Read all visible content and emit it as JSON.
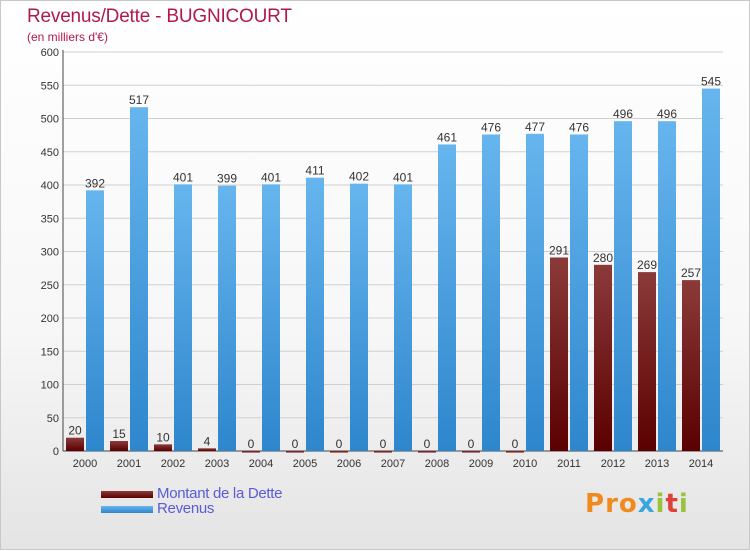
{
  "title": "Revenus/Dette - BUGNICOURT",
  "subtitle": "(en milliers d'€)",
  "logo": {
    "letters": [
      "P",
      "r",
      "o",
      "x",
      "i",
      "t",
      "i"
    ],
    "colors": [
      "#f08a1c",
      "#f08a1c",
      "#f08a1c",
      "#3aa6e0",
      "#9ac33a",
      "#e0403a",
      "#9ac33a"
    ]
  },
  "colors": {
    "debt_top": "#8b3a3a",
    "debt_bottom": "#5a0000",
    "rev_top": "#66b5ee",
    "rev_bottom": "#2e86cc",
    "text": "#5b5bd6",
    "title": "#b01a4a"
  },
  "chart_data": {
    "type": "bar",
    "categories": [
      "2000",
      "2001",
      "2002",
      "2003",
      "2004",
      "2005",
      "2006",
      "2007",
      "2008",
      "2009",
      "2010",
      "2011",
      "2012",
      "2013",
      "2014"
    ],
    "series": [
      {
        "name": "Montant de la Dette",
        "values": [
          20,
          15,
          10,
          4,
          0,
          0,
          0,
          0,
          0,
          0,
          0,
          291,
          280,
          269,
          257
        ]
      },
      {
        "name": "Revenus",
        "values": [
          392,
          517,
          401,
          399,
          401,
          411,
          402,
          401,
          461,
          476,
          477,
          476,
          496,
          496,
          545
        ]
      }
    ],
    "data_labels": [
      [
        "20",
        "15",
        "10",
        "4",
        "0",
        "0",
        "0",
        "0",
        "0",
        "0",
        "0",
        "291",
        "280",
        "269",
        "257"
      ],
      [
        "392",
        "517",
        "401",
        "399",
        "401",
        "411",
        "402",
        "401",
        "461",
        "476",
        "477",
        "476",
        "496",
        "496",
        "545"
      ]
    ],
    "ylim": [
      0,
      600
    ],
    "yticks": [
      0,
      50,
      100,
      150,
      200,
      250,
      300,
      350,
      400,
      450,
      500,
      550,
      600
    ],
    "grid": true,
    "legend_position": "bottom-left"
  }
}
